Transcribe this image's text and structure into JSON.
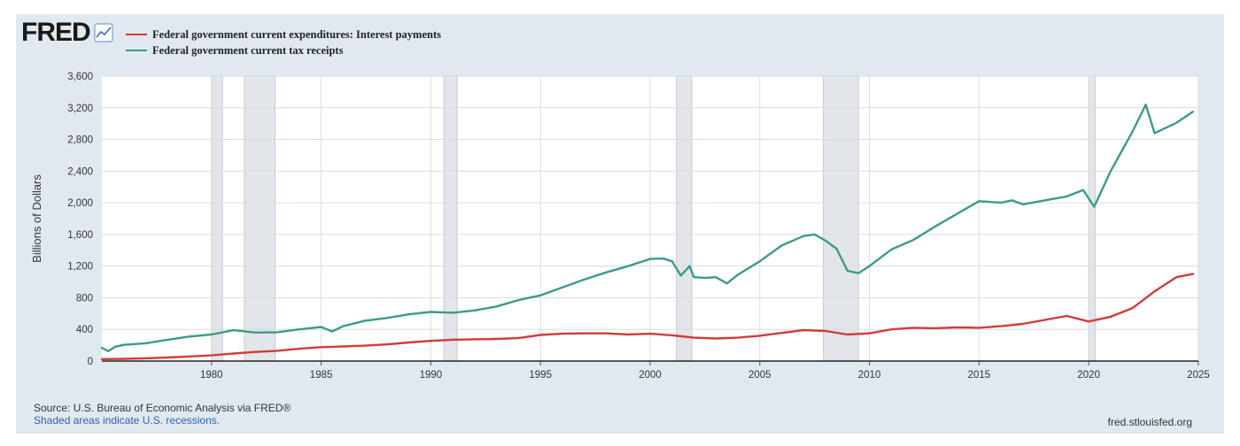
{
  "header": {
    "logo": "FRED",
    "logo_icon": "chart-line-icon"
  },
  "legend": [
    {
      "label": "Federal government current expenditures: Interest payments",
      "color": "#d53a3a"
    },
    {
      "label": "Federal government current tax receipts",
      "color": "#3d9a8b"
    }
  ],
  "footer": {
    "source": "Source: U.S. Bureau of Economic Analysis via FRED®",
    "shaded_note": "Shaded areas indicate U.S. recessions.",
    "site": "fred.stlouisfed.org"
  },
  "colors": {
    "panel_bg": "#e1e9f0",
    "plot_bg": "#ffffff",
    "grid": "#dcdcdc",
    "recession": "#e2e5ea"
  },
  "chart_data": {
    "type": "line",
    "ylabel": "Billions of Dollars",
    "xlim": [
      1975.0,
      2025.0
    ],
    "ylim": [
      0,
      3600
    ],
    "x_ticks": [
      "1980",
      "1985",
      "1990",
      "1995",
      "2000",
      "2005",
      "2010",
      "2015",
      "2020",
      "2025"
    ],
    "y_ticks": [
      "0",
      "400",
      "800",
      "1,200",
      "1,600",
      "2,000",
      "2,400",
      "2,800",
      "3,200",
      "3,600"
    ],
    "grid": true,
    "recessions": [
      [
        1980.0,
        1980.5
      ],
      [
        1981.5,
        1982.9
      ],
      [
        1990.6,
        1991.2
      ],
      [
        2001.2,
        2001.9
      ],
      [
        2007.9,
        2009.5
      ],
      [
        2020.0,
        2020.3
      ]
    ],
    "series": [
      {
        "name": "Federal government current expenditures: Interest payments",
        "color": "#d53a3a",
        "x": [
          1975,
          1976,
          1977,
          1978,
          1979,
          1980,
          1981,
          1982,
          1983,
          1984,
          1985,
          1986,
          1987,
          1988,
          1989,
          1990,
          1991,
          1992,
          1993,
          1994,
          1995,
          1996,
          1997,
          1998,
          1999,
          2000,
          2001,
          2002,
          2003,
          2004,
          2005,
          2006,
          2007,
          2008,
          2009,
          2010,
          2011,
          2012,
          2013,
          2014,
          2015,
          2016,
          2017,
          2018,
          2019,
          2020,
          2021,
          2022,
          2023,
          2024,
          2024.75
        ],
        "y": [
          25,
          28,
          35,
          45,
          58,
          72,
          95,
          115,
          130,
          155,
          175,
          185,
          195,
          210,
          235,
          255,
          270,
          275,
          280,
          290,
          330,
          345,
          350,
          350,
          335,
          345,
          325,
          295,
          285,
          295,
          320,
          355,
          390,
          380,
          335,
          350,
          400,
          420,
          415,
          425,
          420,
          440,
          470,
          520,
          570,
          500,
          560,
          670,
          880,
          1060,
          1100
        ]
      },
      {
        "name": "Federal government current tax receipts",
        "color": "#3d9a8b",
        "x": [
          1975,
          1975.3,
          1975.6,
          1976,
          1977,
          1978,
          1979,
          1980,
          1981,
          1982,
          1983,
          1984,
          1985,
          1985.5,
          1986,
          1987,
          1988,
          1989,
          1990,
          1991,
          1992,
          1993,
          1994,
          1995,
          1996,
          1997,
          1998,
          1999,
          2000,
          2000.6,
          2001,
          2001.4,
          2001.8,
          2002,
          2002.5,
          2003,
          2003.5,
          2004,
          2005,
          2006,
          2007,
          2007.5,
          2008,
          2008.5,
          2009,
          2009.5,
          2010,
          2011,
          2012,
          2013,
          2014,
          2015,
          2016,
          2016.5,
          2017,
          2018,
          2019,
          2019.75,
          2020.25,
          2021,
          2021.5,
          2022,
          2022.6,
          2023,
          2024,
          2024.75
        ],
        "y": [
          165,
          125,
          180,
          205,
          225,
          270,
          310,
          335,
          390,
          360,
          365,
          400,
          430,
          375,
          440,
          510,
          545,
          590,
          620,
          610,
          640,
          690,
          770,
          830,
          930,
          1030,
          1120,
          1200,
          1290,
          1295,
          1260,
          1080,
          1200,
          1060,
          1050,
          1060,
          980,
          1090,
          1260,
          1460,
          1580,
          1600,
          1520,
          1420,
          1140,
          1110,
          1200,
          1410,
          1530,
          1700,
          1860,
          2020,
          2000,
          2030,
          1980,
          2030,
          2080,
          2160,
          1950,
          2400,
          2650,
          2900,
          3240,
          2880,
          3010,
          3150
        ]
      }
    ]
  }
}
